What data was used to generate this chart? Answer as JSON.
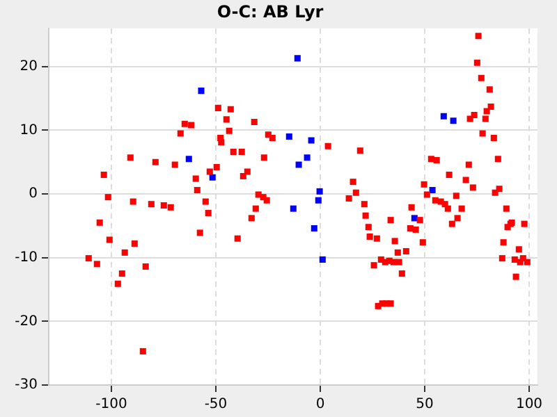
{
  "chart_data": {
    "type": "scatter",
    "title": "O-C: AB Lyr",
    "xlim": [
      -130,
      104
    ],
    "ylim": [
      -30,
      26
    ],
    "xticks": [
      -100,
      -50,
      0,
      50,
      100
    ],
    "yticks": [
      -30,
      -20,
      -10,
      0,
      10,
      20
    ],
    "grid": true,
    "legend": false,
    "marker": "square",
    "series": [
      {
        "color": "#ff0000",
        "x": [
          -48.9,
          -64.9,
          -61.8,
          -66.9,
          -47.8,
          -47.4,
          -90.9,
          -78.9,
          -69.6,
          -49.6,
          -52.9,
          -103.6,
          -59.6,
          -58.9,
          -101.6,
          -89.6,
          -54.9,
          -80.9,
          -74.9,
          -71.6,
          -53.6,
          -105.6,
          -57.6,
          -100.9,
          -88.9,
          -93.6,
          -110.9,
          -106.9,
          -83.6,
          -94.9,
          -96.9,
          -84.9,
          -42.9,
          -44.9,
          -31.6,
          -43.6,
          -24.9,
          -22.9,
          3.7,
          19.1,
          -41.6,
          -37.6,
          -26.9,
          -34.9,
          -36.9,
          15.7,
          17.1,
          -29.6,
          -27.3,
          -25.6,
          13.7,
          21.1,
          -30.9,
          21.7,
          -32.9,
          23.1,
          23.7,
          -39.6,
          75.7,
          75.1,
          77.1,
          81.1,
          81.7,
          79.7,
          73.7,
          71.7,
          79.1,
          77.7,
          83.1,
          85.1,
          53.1,
          55.7,
          71.1,
          61.7,
          69.7,
          49.7,
          73.1,
          85.7,
          83.7,
          51.1,
          65.1,
          55.1,
          57.7,
          59.7,
          61.1,
          67.7,
          89.1,
          27.1,
          43.7,
          47.7,
          33.7,
          65.7,
          63.1,
          43.1,
          45.7,
          91.7,
          91.1,
          89.7,
          97.7,
          35.7,
          49.1,
          87.7,
          41.1,
          37.1,
          95.1,
          29.1,
          31.1,
          33.1,
          35.1,
          37.7,
          25.7,
          39.1,
          87.1,
          93.1,
          97.1,
          95.7,
          99.1,
          93.7,
          27.7,
          29.7,
          31.7,
          33.7
        ],
        "values": [
          13.5,
          11.0,
          10.8,
          9.5,
          8.8,
          8.1,
          5.7,
          5.0,
          4.6,
          4.2,
          3.5,
          3.0,
          2.4,
          0.6,
          -0.5,
          -1.2,
          -1.2,
          -1.6,
          -1.8,
          -2.1,
          -3.0,
          -4.5,
          -6.1,
          -7.2,
          -7.8,
          -9.2,
          -10.1,
          -11.0,
          -11.4,
          -12.5,
          -14.1,
          -24.7,
          13.3,
          11.7,
          11.3,
          9.9,
          9.3,
          8.8,
          7.5,
          6.8,
          6.6,
          6.6,
          5.7,
          3.5,
          2.8,
          1.9,
          0.2,
          -0.1,
          -0.5,
          -1.0,
          -0.7,
          -1.6,
          -2.3,
          -3.4,
          -3.8,
          -5.2,
          -6.7,
          -7.0,
          24.8,
          20.6,
          18.2,
          16.4,
          13.7,
          13.0,
          12.4,
          11.8,
          11.8,
          9.5,
          8.8,
          5.5,
          5.5,
          5.3,
          4.6,
          3.0,
          2.2,
          1.5,
          1.0,
          0.8,
          0.2,
          -0.1,
          -0.3,
          -1.0,
          -1.2,
          -1.6,
          -2.3,
          -2.3,
          -2.3,
          -7.0,
          -2.1,
          -4.1,
          -4.1,
          -3.8,
          -4.7,
          -5.4,
          -5.6,
          -4.5,
          -4.7,
          -5.2,
          -4.7,
          -7.4,
          -7.6,
          -7.6,
          -9.0,
          -9.2,
          -8.7,
          -10.3,
          -10.7,
          -10.5,
          -10.7,
          -10.7,
          -11.2,
          -12.5,
          -10.1,
          -10.3,
          -10.1,
          -10.7,
          -10.7,
          -13.0,
          -17.6,
          -17.2,
          -17.2,
          -17.2
        ]
      },
      {
        "color": "#0000ff",
        "x": [
          -57.0,
          -62.9,
          -51.6,
          -10.9,
          -14.9,
          -4.3,
          -6.3,
          -10.3,
          -0.3,
          -0.9,
          -12.9,
          -2.9,
          1.1,
          59.1,
          63.7,
          53.7,
          45.1
        ],
        "values": [
          16.2,
          5.5,
          2.6,
          21.3,
          9.0,
          8.4,
          5.7,
          4.6,
          0.4,
          -1.0,
          -2.3,
          -5.4,
          -10.3,
          12.2,
          11.5,
          0.6,
          -3.8
        ]
      }
    ]
  }
}
